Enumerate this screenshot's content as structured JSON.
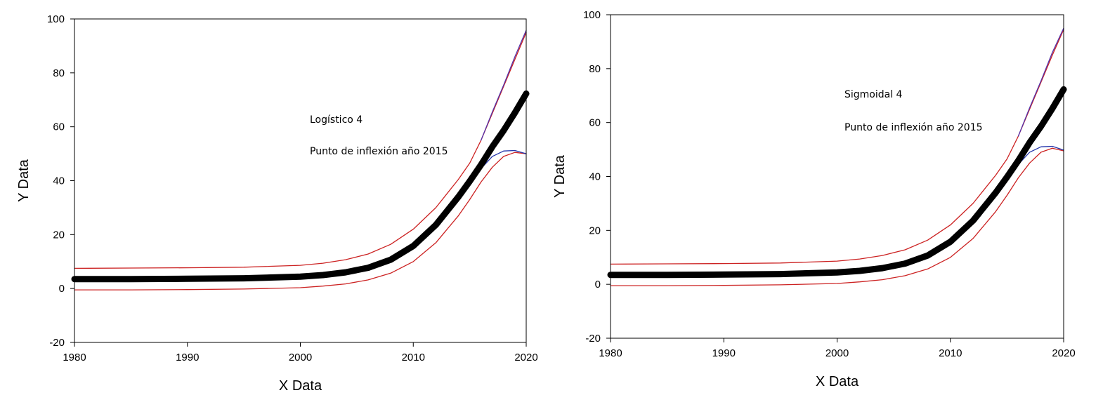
{
  "chart_data": [
    {
      "type": "line",
      "xlabel": "X Data",
      "ylabel": "Y Data",
      "xlim": [
        1980,
        2020
      ],
      "ylim": [
        -20,
        100
      ],
      "xticks": [
        1980,
        1990,
        2000,
        2010,
        2020
      ],
      "yticks": [
        -20,
        0,
        20,
        40,
        60,
        80,
        100
      ],
      "grid": false,
      "annotations": [
        "Logístico 4",
        "Punto de inflexión año 2015"
      ],
      "x": [
        1980,
        1985,
        1990,
        1995,
        2000,
        2002,
        2004,
        2006,
        2008,
        2010,
        2012,
        2014,
        2015,
        2016,
        2017,
        2018,
        2019,
        2020
      ],
      "series": [
        {
          "color": "#000000",
          "values": [
            3.5,
            3.5,
            3.6,
            3.8,
            4.4,
            5.0,
            6.0,
            7.7,
            10.7,
            15.8,
            23.6,
            34.0,
            39.8,
            45.9,
            52.6,
            58.6,
            65.2,
            72.3
          ]
        },
        {
          "color": "#cc2222",
          "values": [
            7.5,
            7.6,
            7.7,
            7.9,
            8.6,
            9.4,
            10.7,
            12.8,
            16.4,
            22.0,
            30.0,
            40.5,
            46.5,
            55.0,
            65.0,
            75.0,
            85.0,
            95.0
          ]
        },
        {
          "color": "#cc2222",
          "values": [
            -0.5,
            -0.5,
            -0.4,
            -0.2,
            0.3,
            0.9,
            1.7,
            3.2,
            5.7,
            10.0,
            17.0,
            27.0,
            33.0,
            39.5,
            45.0,
            49.0,
            50.5,
            50.0
          ]
        },
        {
          "color": "#5533aa",
          "values": [
            null,
            null,
            null,
            null,
            null,
            null,
            null,
            null,
            null,
            null,
            null,
            null,
            null,
            55.0,
            65.5,
            75.5,
            86.0,
            95.8
          ]
        },
        {
          "color": "#2233aa",
          "values": [
            3.0,
            3.0,
            3.1,
            3.3,
            3.8,
            4.4,
            5.3,
            6.9,
            9.8,
            14.8,
            22.5,
            33.0,
            39.0,
            44.5,
            49.0,
            51.0,
            51.2,
            50.0
          ]
        }
      ]
    },
    {
      "type": "line",
      "xlabel": "X Data",
      "ylabel": "Y Data",
      "xlim": [
        1980,
        2020
      ],
      "ylim": [
        -20,
        100
      ],
      "xticks": [
        1980,
        1990,
        2000,
        2010,
        2020
      ],
      "yticks": [
        -20,
        0,
        20,
        40,
        60,
        80,
        100
      ],
      "grid": false,
      "annotations": [
        "Sigmoidal 4",
        "Punto de inflexión año 2015"
      ],
      "x": [
        1980,
        1985,
        1990,
        1995,
        2000,
        2002,
        2004,
        2006,
        2008,
        2010,
        2012,
        2014,
        2015,
        2016,
        2017,
        2018,
        2019,
        2020
      ],
      "series": [
        {
          "color": "#000000",
          "values": [
            3.5,
            3.5,
            3.6,
            3.8,
            4.4,
            5.0,
            6.0,
            7.7,
            10.7,
            15.8,
            23.6,
            34.0,
            39.8,
            45.9,
            52.6,
            58.6,
            65.2,
            72.3
          ]
        },
        {
          "color": "#cc2222",
          "values": [
            7.5,
            7.6,
            7.7,
            7.9,
            8.6,
            9.4,
            10.7,
            12.8,
            16.4,
            22.0,
            30.0,
            40.5,
            46.5,
            55.0,
            65.0,
            75.0,
            85.0,
            94.5
          ]
        },
        {
          "color": "#cc2222",
          "values": [
            -0.5,
            -0.5,
            -0.4,
            -0.2,
            0.3,
            0.9,
            1.7,
            3.2,
            5.7,
            10.0,
            17.0,
            27.0,
            33.0,
            39.5,
            45.0,
            49.0,
            50.5,
            49.5
          ]
        },
        {
          "color": "#5533aa",
          "values": [
            null,
            null,
            null,
            null,
            null,
            null,
            null,
            null,
            null,
            null,
            null,
            null,
            null,
            55.0,
            65.5,
            75.5,
            86.0,
            95.0
          ]
        },
        {
          "color": "#2233aa",
          "values": [
            3.0,
            3.0,
            3.1,
            3.3,
            3.8,
            4.4,
            5.3,
            6.9,
            9.8,
            14.8,
            22.5,
            33.0,
            39.0,
            44.5,
            49.0,
            51.0,
            51.2,
            49.8
          ]
        }
      ]
    }
  ]
}
